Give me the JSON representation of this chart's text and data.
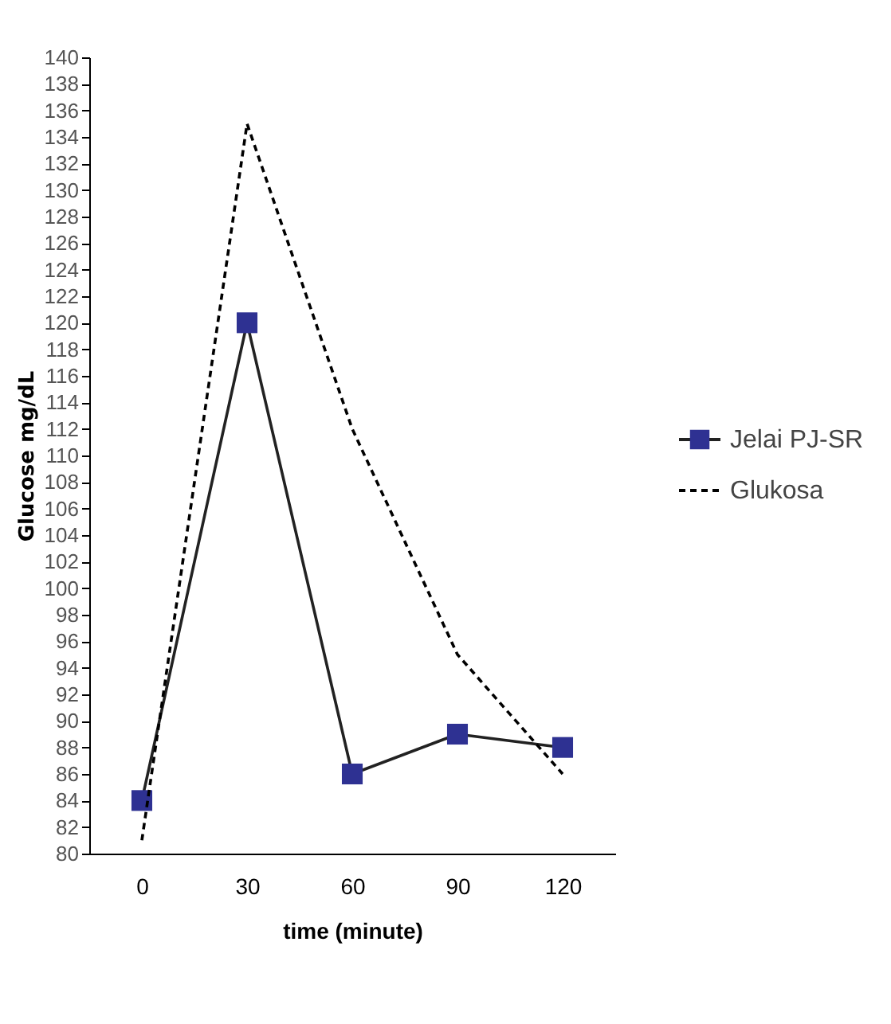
{
  "chart_data": {
    "type": "line",
    "xlabel": "time (minute)",
    "ylabel": "Glucose mg/dL",
    "categories": [
      "0",
      "30",
      "60",
      "90",
      "120"
    ],
    "series": [
      {
        "name": "Jelai PJ-SR",
        "color": "#2e3192",
        "values": [
          84,
          120,
          86,
          89,
          88
        ],
        "marker": "square",
        "line_style": "solid"
      },
      {
        "name": "Glukosa",
        "color": "#000000",
        "values": [
          81,
          135,
          112,
          95,
          86
        ],
        "marker": "none",
        "line_style": "dashed"
      }
    ],
    "ylim": [
      80,
      140
    ],
    "yticks": [
      80,
      82,
      84,
      86,
      88,
      90,
      92,
      94,
      96,
      98,
      100,
      102,
      104,
      106,
      108,
      110,
      112,
      114,
      116,
      118,
      120,
      122,
      124,
      126,
      128,
      130,
      132,
      134,
      136,
      138,
      140
    ],
    "grid": false,
    "legend": "right"
  }
}
